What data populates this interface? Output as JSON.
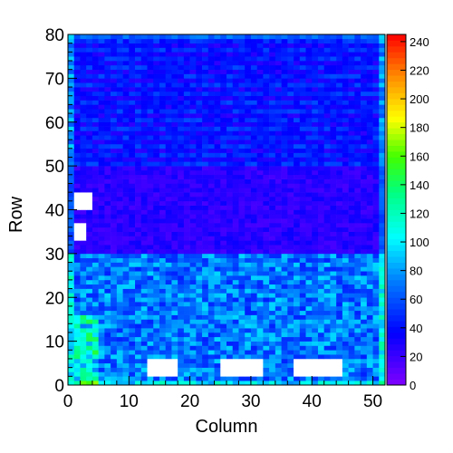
{
  "chart_data": {
    "type": "heatmap",
    "title": "",
    "xlabel": "Column",
    "ylabel": "Row",
    "x_range": [
      0,
      52
    ],
    "y_range": [
      0,
      80
    ],
    "x_ticks": [
      0,
      10,
      20,
      30,
      40,
      50
    ],
    "y_ticks": [
      0,
      10,
      20,
      30,
      40,
      50,
      60,
      70,
      80
    ],
    "z_range": [
      0,
      245
    ],
    "colorbar_ticks": [
      0,
      20,
      40,
      60,
      80,
      100,
      120,
      140,
      160,
      180,
      200,
      220,
      240
    ],
    "colormap": "rainbow (violet-blue-cyan-green-yellow-orange-red)",
    "n_columns": 52,
    "n_rows": 80,
    "white_cells_note": "empty (zero-content) bins rendered white",
    "regions": [
      {
        "rows": [
          0,
          30
        ],
        "cols": [
          0,
          52
        ],
        "typical_value": 70,
        "description": "lower band, mostly cyan/green"
      },
      {
        "rows": [
          30,
          50
        ],
        "cols": [
          0,
          52
        ],
        "typical_value": 25,
        "description": "middle band, mostly violet/blue"
      },
      {
        "rows": [
          50,
          80
        ],
        "cols": [
          0,
          52
        ],
        "typical_value": 35,
        "description": "upper band, striped blue rows"
      },
      {
        "rows": [
          0,
          16
        ],
        "cols": [
          1,
          5
        ],
        "typical_value": 110,
        "description": "green spot near left edge"
      }
    ],
    "empty_regions": [
      {
        "rows": [
          2,
          6
        ],
        "cols": [
          13,
          18
        ]
      },
      {
        "rows": [
          2,
          6
        ],
        "cols": [
          25,
          32
        ]
      },
      {
        "rows": [
          2,
          6
        ],
        "cols": [
          37,
          45
        ]
      },
      {
        "rows": [
          33,
          37
        ],
        "cols": [
          1,
          3
        ]
      },
      {
        "rows": [
          40,
          44
        ],
        "cols": [
          1,
          4
        ]
      }
    ]
  }
}
